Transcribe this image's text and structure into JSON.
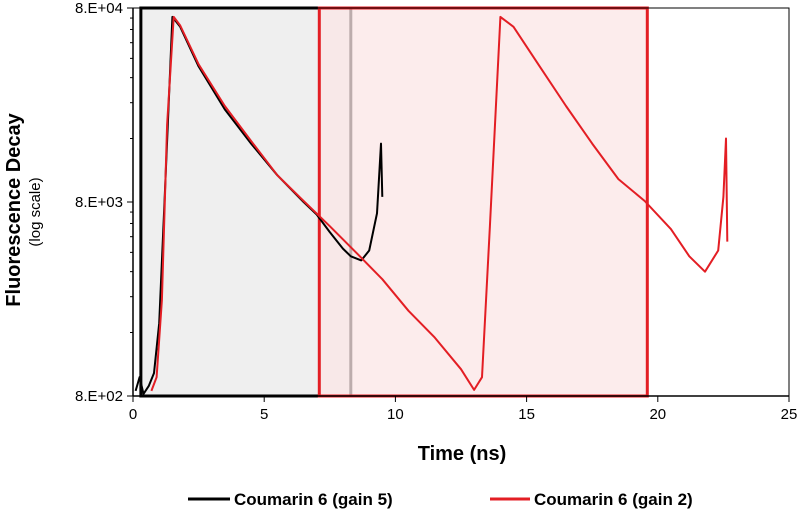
{
  "chart_data": {
    "type": "line",
    "xlabel": "Time (ns)",
    "ylabel": "Fluorescence Decay",
    "ylabel_sub": "(log scale)",
    "y_scale": "log",
    "xlim": [
      0,
      25
    ],
    "ylim": [
      800,
      80000
    ],
    "x_ticks": [
      "0",
      "5",
      "10",
      "15",
      "20",
      "25"
    ],
    "y_ticks": [
      "8.E+02",
      "8.E+03",
      "8.E+04"
    ],
    "grid": false,
    "legend_position": "bottom",
    "shaded_regions": [
      {
        "x": [
          0.3,
          8.3
        ],
        "fill": "#efefef",
        "edge": "#000000"
      },
      {
        "x": [
          7.1,
          19.6
        ],
        "fill": "#fbe6e6",
        "edge": "#e31e24"
      }
    ],
    "series": [
      {
        "name": "Coumarin 6 (gain 5)",
        "color": "#000000",
        "x": [
          0.1,
          0.25,
          0.4,
          0.6,
          0.8,
          1.0,
          1.2,
          1.5,
          1.8,
          2.5,
          3.5,
          4.5,
          5.5,
          6.5,
          7.0,
          7.5,
          8.0,
          8.3,
          8.7,
          9.0,
          9.3,
          9.45,
          9.5
        ],
        "y": [
          850,
          1000,
          820,
          900,
          1050,
          1900,
          8000,
          72000,
          64000,
          40000,
          24000,
          16000,
          11000,
          8000,
          6900,
          5600,
          4600,
          4200,
          4000,
          4500,
          7000,
          16000,
          8500
        ]
      },
      {
        "name": "Coumarin 6 (gain 2)",
        "color": "#e31e24",
        "x": [
          0.7,
          0.9,
          1.1,
          1.3,
          1.55,
          1.8,
          2.5,
          3.5,
          4.5,
          5.5,
          6.5,
          7.5,
          8.5,
          9.5,
          10.5,
          11.5,
          12.5,
          13.0,
          13.3,
          13.6,
          14.0,
          14.5,
          15.5,
          16.5,
          17.5,
          18.5,
          19.5,
          20.5,
          21.2,
          21.8,
          22.3,
          22.5,
          22.6,
          22.65
        ],
        "y": [
          850,
          1000,
          2500,
          20000,
          72000,
          65000,
          41000,
          25000,
          16500,
          11000,
          8100,
          6000,
          4400,
          3200,
          2200,
          1600,
          1100,
          860,
          1000,
          6000,
          72000,
          64000,
          40000,
          25000,
          16000,
          10500,
          8100,
          5800,
          4200,
          3500,
          4500,
          8500,
          17000,
          5000
        ]
      }
    ]
  }
}
